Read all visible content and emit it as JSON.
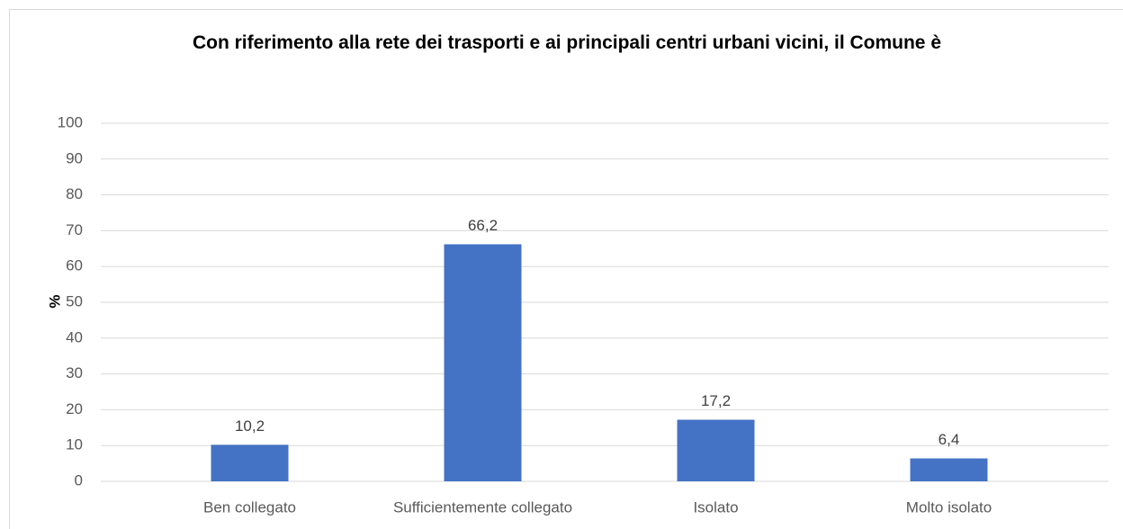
{
  "chart_data": {
    "type": "bar",
    "title": "Con riferimento alla rete dei trasporti e ai principali centri urbani vicini, il Comune è",
    "ylabel": "%",
    "categories": [
      "Ben collegato",
      "Sufficientemente collegato",
      "Isolato",
      "Molto isolato"
    ],
    "values": [
      10.2,
      66.2,
      17.2,
      6.4
    ],
    "value_labels": [
      "10,2",
      "66,2",
      "17,2",
      "6,4"
    ],
    "color": "#4472c4",
    "ylim": [
      0,
      100
    ],
    "yticks": [
      0,
      10,
      20,
      30,
      40,
      50,
      60,
      70,
      80,
      90,
      100
    ],
    "grid": true
  }
}
